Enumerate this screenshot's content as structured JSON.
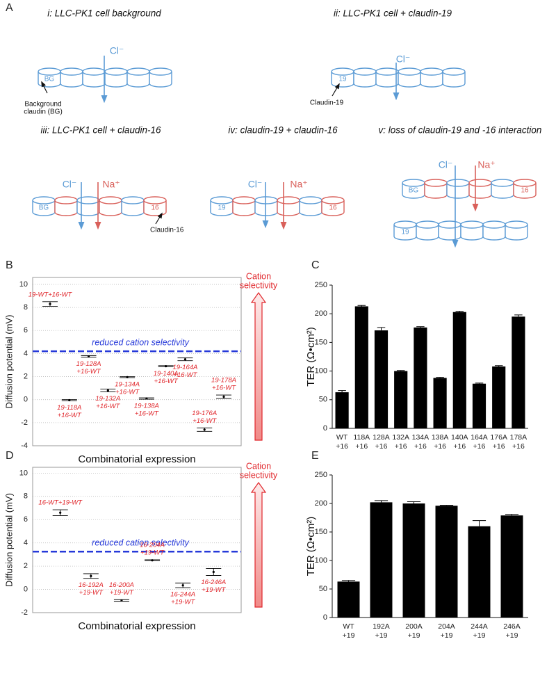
{
  "panel_labels": [
    "A",
    "B",
    "C",
    "D",
    "E"
  ],
  "diagram": {
    "panels": [
      {
        "title": "i: LLC-PK1 cell background",
        "rows": [
          {
            "colors": [
              "#5b9bd5",
              "#5b9bd5",
              "#5b9bd5",
              "#5b9bd5",
              "#5b9bd5",
              "#5b9bd5"
            ],
            "labels": [
              "BG",
              null,
              null,
              null,
              null,
              null
            ]
          }
        ],
        "ions": [
          {
            "name": "Cl⁻",
            "color": "#5b9bd5"
          }
        ],
        "callout": [
          "Background",
          "claudin (BG)"
        ]
      },
      {
        "title": "ii: LLC-PK1 cell + claudin-19",
        "rows": [
          {
            "colors": [
              "#5b9bd5",
              "#5b9bd5",
              "#5b9bd5",
              "#5b9bd5",
              "#5b9bd5",
              "#5b9bd5"
            ],
            "labels": [
              "19",
              null,
              null,
              null,
              null,
              null
            ]
          }
        ],
        "ions": [
          {
            "name": "Cl⁻",
            "color": "#5b9bd5"
          }
        ],
        "callout": [
          "Claudin-19"
        ]
      },
      {
        "title": "iii: LLC-PK1 cell + claudin-16",
        "rows": [
          {
            "colors": [
              "#5b9bd5",
              "#d9605a",
              "#5b9bd5",
              "#d9605a",
              "#5b9bd5",
              "#d9605a"
            ],
            "labels": [
              "BG",
              null,
              null,
              null,
              null,
              "16"
            ]
          }
        ],
        "ions": [
          {
            "name": "Cl⁻",
            "color": "#5b9bd5"
          },
          {
            "name": "Na⁺",
            "color": "#d9605a"
          }
        ],
        "callout": [
          "Claudin-16"
        ]
      },
      {
        "title": "iv: claudin-19 + claudin-16",
        "rows": [
          {
            "colors": [
              "#5b9bd5",
              "#d9605a",
              "#5b9bd5",
              "#d9605a",
              "#5b9bd5",
              "#d9605a"
            ],
            "labels": [
              "19",
              null,
              null,
              null,
              null,
              "16"
            ]
          }
        ],
        "ions": [
          {
            "name": "Cl⁻",
            "color": "#5b9bd5"
          },
          {
            "name": "Na⁺",
            "color": "#d9605a"
          }
        ]
      },
      {
        "title": "v: loss of claudin-19 and -16 interaction",
        "rows": [
          {
            "colors": [
              "#5b9bd5",
              "#d9605a",
              "#5b9bd5",
              "#d9605a",
              "#5b9bd5",
              "#d9605a"
            ],
            "labels": [
              "BG",
              null,
              null,
              null,
              null,
              "16"
            ]
          },
          {
            "colors": [
              "#5b9bd5",
              "#5b9bd5",
              "#5b9bd5",
              "#5b9bd5",
              "#5b9bd5",
              "#5b9bd5"
            ],
            "labels": [
              "19",
              null,
              null,
              null,
              null,
              null
            ]
          }
        ],
        "ions": [
          {
            "name": "Cl⁻",
            "color": "#5b9bd5"
          },
          {
            "name": "Na⁺",
            "color": "#d9605a"
          }
        ]
      }
    ]
  },
  "chart_data": [
    {
      "type": "errorbar",
      "ylabel": "Diffusion potential (mV)",
      "xlabel": "Combinatorial expression",
      "categories": [
        [
          "19-WT+16-WT"
        ],
        [
          "19-118A",
          "+16-WT"
        ],
        [
          "19-128A",
          "+16-WT"
        ],
        [
          "19-132A",
          "+16-WT"
        ],
        [
          "19-134A",
          "+16-WT"
        ],
        [
          "19-138A",
          "+16-WT"
        ],
        [
          "19-140A",
          "+16-WT"
        ],
        [
          "19-164A",
          "+16-WT"
        ],
        [
          "19-176A",
          "+16-WT"
        ],
        [
          "19-178A",
          "+16-WT"
        ]
      ],
      "values": [
        8.3,
        -0.05,
        3.75,
        0.8,
        1.95,
        0.1,
        2.9,
        3.5,
        -2.6,
        0.25
      ],
      "errors": [
        0.2,
        0.05,
        0.07,
        0.12,
        0.04,
        0.06,
        0.05,
        0.12,
        0.15,
        0.15
      ],
      "color": "#000000",
      "label_color": "#e0262b",
      "ylim": [
        -4,
        10.6
      ],
      "yticks": [
        -4,
        -2,
        0,
        2,
        4,
        6,
        8,
        10
      ],
      "grid": true,
      "reference_line": {
        "value": 4.2,
        "label": "reduced cation selectivity",
        "color": "#2639d9"
      },
      "arrow_label": [
        "Cation",
        "selectivity"
      ]
    },
    {
      "type": "bar",
      "ylabel": "TER (Ω•cm²)",
      "categories": [
        [
          "WT",
          "+16"
        ],
        [
          "118A",
          "+16"
        ],
        [
          "128A",
          "+16"
        ],
        [
          "132A",
          "+16"
        ],
        [
          "134A",
          "+16"
        ],
        [
          "138A",
          "+16"
        ],
        [
          "140A",
          "+16"
        ],
        [
          "164A",
          "+16"
        ],
        [
          "176A",
          "+16"
        ],
        [
          "178A",
          "+16"
        ]
      ],
      "values": [
        63,
        213,
        171,
        100,
        176,
        88,
        203,
        78,
        108,
        195
      ],
      "errors": [
        3,
        1.5,
        5,
        1,
        1.5,
        1,
        1.5,
        1,
        1.5,
        3
      ],
      "color": "#000000",
      "ylim": [
        0,
        250
      ],
      "yticks": [
        0,
        50,
        100,
        150,
        200,
        250
      ]
    },
    {
      "type": "errorbar",
      "ylabel": "Diffusion potential (mV)",
      "xlabel": "Combinatorial expression",
      "categories": [
        [
          "16-WT+19-WT"
        ],
        [
          "16-192A",
          "+19-WT"
        ],
        [
          "16-200A",
          "+19-WT"
        ],
        [
          "16-204A",
          "+19-WT"
        ],
        [
          "16-244A",
          "+19-WT"
        ],
        [
          "16-246A",
          "+19-WT"
        ]
      ],
      "values": [
        6.6,
        1.15,
        -0.95,
        2.5,
        0.35,
        1.5
      ],
      "errors": [
        0.25,
        0.2,
        0.07,
        0.05,
        0.2,
        0.3
      ],
      "color": "#000000",
      "label_color": "#e0262b",
      "ylim": [
        -2,
        10.5
      ],
      "yticks": [
        -2,
        0,
        2,
        4,
        6,
        8,
        10
      ],
      "grid": true,
      "reference_line": {
        "value": 3.25,
        "label": "reduced cation selectivity",
        "color": "#2639d9"
      },
      "arrow_label": [
        "Cation",
        "selectivity"
      ]
    },
    {
      "type": "bar",
      "ylabel": "TER (Ω•cm²)",
      "categories": [
        [
          "WT",
          "+19"
        ],
        [
          "192A",
          "+19"
        ],
        [
          "200A",
          "+19"
        ],
        [
          "204A",
          "+19"
        ],
        [
          "244A",
          "+19"
        ],
        [
          "246A",
          "+19"
        ]
      ],
      "values": [
        63,
        202,
        200,
        196,
        160,
        179
      ],
      "errors": [
        2,
        3,
        3,
        1,
        10,
        2
      ],
      "color": "#000000",
      "ylim": [
        0,
        250
      ],
      "yticks": [
        0,
        50,
        100,
        150,
        200,
        250
      ]
    }
  ]
}
